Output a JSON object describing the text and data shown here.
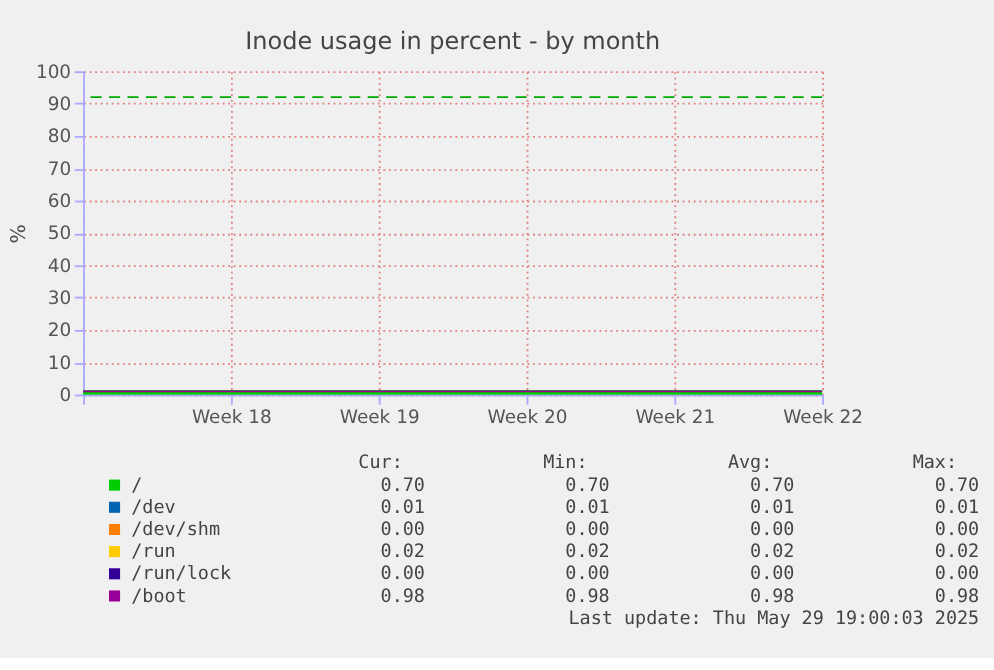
{
  "chart_data": {
    "type": "line",
    "title": "Inode usage in percent - by month",
    "ylabel": "%",
    "categories": [
      null,
      "Week 18",
      "Week 19",
      "Week 20",
      "Week 21",
      "Week 22"
    ],
    "ylim": [
      0,
      100
    ],
    "yticks": [
      0,
      10,
      20,
      30,
      40,
      50,
      60,
      70,
      80,
      90,
      100
    ],
    "grid": true,
    "legend": "bottom",
    "line_style": "solid",
    "series": [
      {
        "name": "/",
        "color": "#00cc00",
        "values": [
          0.7,
          0.7,
          0.7,
          0.7,
          0.7,
          0.7
        ]
      },
      {
        "name": "/dev",
        "color": "#0066b3",
        "values": [
          null,
          null,
          null,
          null,
          null,
          null
        ]
      },
      {
        "name": "/dev/shm",
        "color": "#ff8000",
        "values": [
          null,
          null,
          null,
          null,
          null,
          null
        ]
      },
      {
        "name": "/run",
        "color": "#ffcc00",
        "values": [
          null,
          null,
          null,
          null,
          null,
          null
        ]
      },
      {
        "name": "/run/lock",
        "color": "#330099",
        "values": [
          null,
          null,
          null,
          null,
          null,
          null
        ]
      },
      {
        "name": "/boot",
        "color": "#990099",
        "values": [
          0.98,
          0.98,
          0.98,
          0.98,
          0.98,
          0.98
        ]
      }
    ],
    "ref_lines": [
      {
        "axis": "y",
        "value": 92,
        "color": "#00aa00",
        "line_style": "dashed"
      }
    ],
    "annotations": [
      "Cur:",
      "Min:",
      "Avg:",
      "Max:",
      "0.70",
      "0.70",
      "0.70",
      "0.70",
      "0.01",
      "0.01",
      "0.01",
      "0.01",
      "0.00",
      "0.00",
      "0.00",
      "0.00",
      "0.02",
      "0.02",
      "0.02",
      "0.02",
      "0.00",
      "0.00",
      "0.00",
      "0.00",
      "0.98",
      "0.98",
      "0.98",
      "0.98",
      "Last update: Thu May 29 19:00:03 2025"
    ]
  }
}
